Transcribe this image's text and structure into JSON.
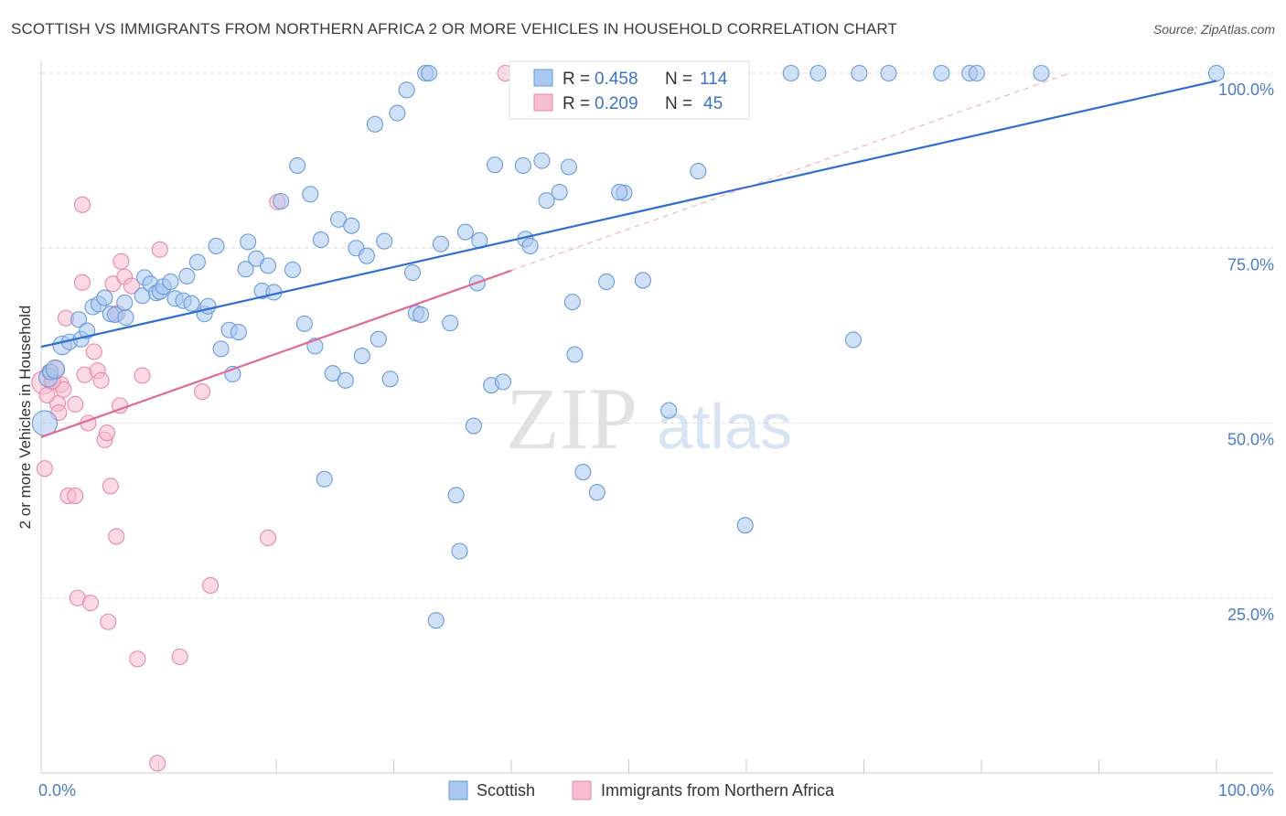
{
  "title": "SCOTTISH VS IMMIGRANTS FROM NORTHERN AFRICA 2 OR MORE VEHICLES IN HOUSEHOLD CORRELATION CHART",
  "source": "Source: ZipAtlas.com",
  "watermark": {
    "zip": "ZIP",
    "atlas": "atlas"
  },
  "colors": {
    "scottish_fill": "#aac7ef",
    "scottish_stroke": "#6a9bdc",
    "scottish_line": "#2f6fd0",
    "immigrants_fill": "#f7bccd",
    "immigrants_stroke": "#e889a8",
    "immigrants_line": "#e06a93",
    "tick_label": "#4a7cc8",
    "grid": "#dddddd"
  },
  "legend": {
    "r_label": "R =",
    "n_label": "N =",
    "items": [
      {
        "name": "Scottish",
        "r": "0.458",
        "n": "114"
      },
      {
        "name": "Immigrants from Northern Africa",
        "r": "0.209",
        "n": "45"
      }
    ]
  },
  "chart_data": {
    "type": "scatter",
    "title": "SCOTTISH VS IMMIGRANTS FROM NORTHERN AFRICA 2 OR MORE VEHICLES IN HOUSEHOLD CORRELATION CHART",
    "xlabel": "",
    "ylabel": "2 or more Vehicles in Household",
    "xlim": [
      0,
      100
    ],
    "ylim": [
      0,
      100
    ],
    "x_ticks": [
      0,
      100
    ],
    "x_tick_labels": [
      "0.0%",
      "100.0%"
    ],
    "y_ticks": [
      25,
      50,
      75,
      100
    ],
    "y_tick_labels": [
      "25.0%",
      "50.0%",
      "75.0%",
      "100.0%"
    ],
    "grid": true,
    "series": [
      {
        "name": "Scottish",
        "r": 0.458,
        "n": 114,
        "trend": {
          "x0": 0,
          "y0": 60.9,
          "x1": 100,
          "y1": 98.9
        },
        "points": [
          [
            0.3,
            50.0,
            1.6
          ],
          [
            0.6,
            56.5,
            1.2
          ],
          [
            0.8,
            57.3,
            1.0
          ],
          [
            1.2,
            57.7,
            1.2
          ],
          [
            1.8,
            61.1,
            1.2
          ],
          [
            2.4,
            61.6,
            1.0
          ],
          [
            3.4,
            62.0,
            1.0
          ],
          [
            3.2,
            64.8,
            1.0
          ],
          [
            3.9,
            63.2,
            1.0
          ],
          [
            4.4,
            66.6,
            1.0
          ],
          [
            4.9,
            67.0,
            1.0
          ],
          [
            5.4,
            67.9,
            1.0
          ],
          [
            5.9,
            65.6,
            1.0
          ],
          [
            6.3,
            65.5,
            1.0
          ],
          [
            7.2,
            65.1,
            1.0
          ],
          [
            7.1,
            67.2,
            1.0
          ],
          [
            8.6,
            68.2,
            1.0
          ],
          [
            8.8,
            70.8,
            1.0
          ],
          [
            9.3,
            69.9,
            1.0
          ],
          [
            9.8,
            68.6,
            1.0
          ],
          [
            10.1,
            68.8,
            1.0
          ],
          [
            10.4,
            69.5,
            1.0
          ],
          [
            11.0,
            70.2,
            1.0
          ],
          [
            11.4,
            67.8,
            1.0
          ],
          [
            12.1,
            67.5,
            1.0
          ],
          [
            12.4,
            71.0,
            1.0
          ],
          [
            12.8,
            67.1,
            1.0
          ],
          [
            13.3,
            73.0,
            1.0
          ],
          [
            13.9,
            65.6,
            1.0
          ],
          [
            14.2,
            66.7,
            1.0
          ],
          [
            14.9,
            75.3,
            1.0
          ],
          [
            15.3,
            60.6,
            1.0
          ],
          [
            16.0,
            63.3,
            1.0
          ],
          [
            16.3,
            57.0,
            1.0
          ],
          [
            16.8,
            63.0,
            1.0
          ],
          [
            17.4,
            72.0,
            1.0
          ],
          [
            17.6,
            75.9,
            1.0
          ],
          [
            18.3,
            73.5,
            1.0
          ],
          [
            18.8,
            68.9,
            1.0
          ],
          [
            19.3,
            72.5,
            1.0
          ],
          [
            19.8,
            68.7,
            1.0
          ],
          [
            20.4,
            81.7,
            1.0
          ],
          [
            21.4,
            71.9,
            1.0
          ],
          [
            21.8,
            86.8,
            1.0
          ],
          [
            22.4,
            64.2,
            1.0
          ],
          [
            22.9,
            82.7,
            1.0
          ],
          [
            23.3,
            61.0,
            1.0
          ],
          [
            23.8,
            76.2,
            1.0
          ],
          [
            24.8,
            57.1,
            1.0
          ],
          [
            25.3,
            79.1,
            1.0
          ],
          [
            26.4,
            78.2,
            1.0
          ],
          [
            25.9,
            56.1,
            1.0
          ],
          [
            24.1,
            42.0,
            1.0
          ],
          [
            26.8,
            75.0,
            1.0
          ],
          [
            27.3,
            59.6,
            1.0
          ],
          [
            27.7,
            73.9,
            1.0
          ],
          [
            28.4,
            92.7,
            1.0
          ],
          [
            28.7,
            62.0,
            1.0
          ],
          [
            29.2,
            76.0,
            1.0
          ],
          [
            29.7,
            56.3,
            1.0
          ],
          [
            30.3,
            94.3,
            1.0
          ],
          [
            31.1,
            97.6,
            1.0
          ],
          [
            31.6,
            71.5,
            1.0
          ],
          [
            31.9,
            65.7,
            1.0
          ],
          [
            32.3,
            65.5,
            1.0
          ],
          [
            32.7,
            100.0,
            1.0
          ],
          [
            33.0,
            100.0,
            1.0
          ],
          [
            34.0,
            75.6,
            1.0
          ],
          [
            34.8,
            64.3,
            1.0
          ],
          [
            35.3,
            39.7,
            1.0
          ],
          [
            35.6,
            31.7,
            1.0
          ],
          [
            33.6,
            21.8,
            1.0
          ],
          [
            36.1,
            77.3,
            1.0
          ],
          [
            36.8,
            49.6,
            1.0
          ],
          [
            37.3,
            76.1,
            1.0
          ],
          [
            37.1,
            70.0,
            1.0
          ],
          [
            38.3,
            55.4,
            1.0
          ],
          [
            38.6,
            86.9,
            1.0
          ],
          [
            39.3,
            55.9,
            1.0
          ],
          [
            41.0,
            86.8,
            1.0
          ],
          [
            41.2,
            76.3,
            1.0
          ],
          [
            41.6,
            75.3,
            1.0
          ],
          [
            42.6,
            87.5,
            1.0
          ],
          [
            43.0,
            81.8,
            1.0
          ],
          [
            44.1,
            83.0,
            1.0
          ],
          [
            44.9,
            86.6,
            1.0
          ],
          [
            45.2,
            67.3,
            1.0
          ],
          [
            45.4,
            59.8,
            1.0
          ],
          [
            47.6,
            100.0,
            1.0
          ],
          [
            49.1,
            100.0,
            1.0
          ],
          [
            50.4,
            100.0,
            1.0
          ],
          [
            51.9,
            100.0,
            1.0
          ],
          [
            55.3,
            100.0,
            1.0
          ],
          [
            46.1,
            43.0,
            1.0
          ],
          [
            47.3,
            40.1,
            1.0
          ],
          [
            49.6,
            82.9,
            1.0
          ],
          [
            48.1,
            70.2,
            1.0
          ],
          [
            49.2,
            83.0,
            1.0
          ],
          [
            51.2,
            70.4,
            1.0
          ],
          [
            53.4,
            51.8,
            1.0
          ],
          [
            55.9,
            86.0,
            1.0
          ],
          [
            59.9,
            35.4,
            1.0
          ],
          [
            63.8,
            100.0,
            1.0
          ],
          [
            66.1,
            100.0,
            1.0
          ],
          [
            69.6,
            100.0,
            1.0
          ],
          [
            72.1,
            100.0,
            1.0
          ],
          [
            76.6,
            100.0,
            1.0
          ],
          [
            79.0,
            100.0,
            1.0
          ],
          [
            79.6,
            100.0,
            1.0
          ],
          [
            69.1,
            61.9,
            1.0
          ],
          [
            85.1,
            100.0,
            1.0
          ],
          [
            100.0,
            100.0,
            1.0
          ]
        ]
      },
      {
        "name": "Immigrants from Northern Africa",
        "r": 0.209,
        "n": 45,
        "trend": {
          "x0": 0,
          "y0": 48.0,
          "x1": 40,
          "y1": 71.8
        },
        "trend_dashed_to": {
          "x": 87.5,
          "y": 100.0
        },
        "points": [
          [
            0.2,
            55.8,
            1.5
          ],
          [
            0.3,
            43.5,
            1.0
          ],
          [
            0.7,
            57.3,
            1.0
          ],
          [
            0.9,
            55.9,
            1.0
          ],
          [
            1.4,
            52.8,
            1.0
          ],
          [
            1.5,
            51.5,
            1.0
          ],
          [
            1.7,
            55.5,
            1.0
          ],
          [
            1.9,
            54.8,
            1.0
          ],
          [
            2.1,
            65.0,
            1.0
          ],
          [
            2.3,
            39.6,
            1.0
          ],
          [
            2.9,
            39.6,
            1.0
          ],
          [
            2.9,
            52.7,
            1.0
          ],
          [
            3.1,
            25.0,
            1.0
          ],
          [
            3.5,
            81.2,
            1.0
          ],
          [
            3.5,
            70.1,
            1.0
          ],
          [
            3.7,
            56.9,
            1.0
          ],
          [
            4.0,
            50.0,
            1.0
          ],
          [
            4.2,
            24.3,
            1.0
          ],
          [
            4.5,
            60.2,
            1.0
          ],
          [
            4.8,
            57.5,
            1.0
          ],
          [
            5.1,
            56.1,
            1.0
          ],
          [
            5.4,
            47.6,
            1.0
          ],
          [
            5.6,
            48.6,
            1.0
          ],
          [
            5.7,
            21.6,
            1.0
          ],
          [
            5.9,
            41.0,
            1.0
          ],
          [
            6.1,
            69.9,
            1.0
          ],
          [
            6.4,
            33.8,
            1.0
          ],
          [
            6.5,
            65.7,
            1.0
          ],
          [
            6.7,
            52.5,
            1.0
          ],
          [
            6.8,
            73.1,
            1.0
          ],
          [
            7.1,
            70.9,
            1.0
          ],
          [
            7.7,
            69.6,
            1.0
          ],
          [
            8.2,
            16.3,
            1.0
          ],
          [
            8.6,
            56.8,
            1.0
          ],
          [
            9.9,
            1.4,
            1.0
          ],
          [
            10.1,
            74.8,
            1.0
          ],
          [
            11.8,
            16.6,
            1.0
          ],
          [
            13.7,
            54.5,
            1.0
          ],
          [
            14.4,
            26.8,
            1.0
          ],
          [
            19.3,
            33.6,
            1.0
          ],
          [
            20.1,
            81.6,
            1.0
          ],
          [
            39.5,
            100.0,
            1.0
          ],
          [
            1.0,
            56.0,
            1.0
          ],
          [
            1.3,
            57.8,
            1.0
          ],
          [
            0.5,
            54.0,
            1.0
          ]
        ]
      }
    ]
  }
}
